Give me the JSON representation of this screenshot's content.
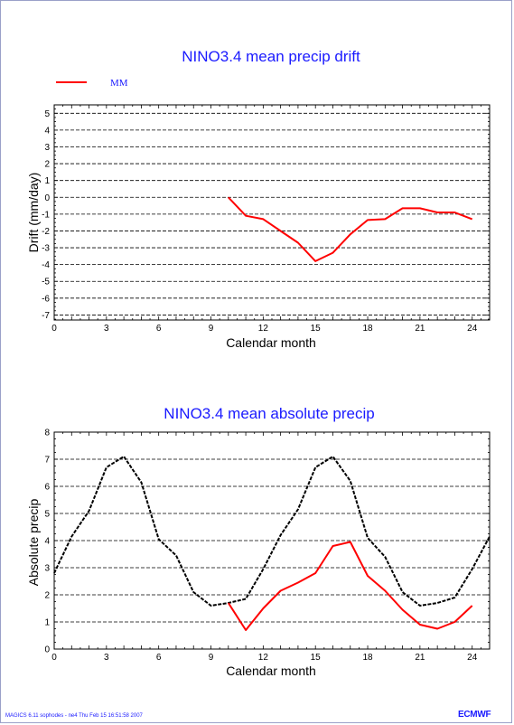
{
  "footer": "MAGICS 6.11 sophodes - ne4 Thu Feb 15 16:51:58 2007",
  "logo": "ECMWF",
  "chart_data": [
    {
      "type": "line",
      "title": "NINO3.4 mean precip drift",
      "xlabel": "Calendar month",
      "ylabel": "Drift (mm/day)",
      "xlim": [
        0,
        25
      ],
      "ylim": [
        -7.3,
        5.5
      ],
      "xticks": [
        0,
        3,
        6,
        9,
        12,
        15,
        18,
        21,
        24
      ],
      "yticks": [
        -7,
        -6,
        -5,
        -4,
        -3,
        -2,
        -1,
        0,
        1,
        2,
        3,
        4,
        5
      ],
      "grid": "horizontal dashed",
      "legend": {
        "position": "top-left",
        "entries": [
          {
            "label": "MM",
            "color": "#ff0000"
          }
        ]
      },
      "series": [
        {
          "name": "MM",
          "color": "#ff0000",
          "x": [
            10,
            11,
            12,
            13,
            14,
            15,
            16,
            17,
            18,
            19,
            20,
            21,
            22,
            23,
            24
          ],
          "y": [
            0.0,
            -1.1,
            -1.3,
            -2.0,
            -2.7,
            -3.8,
            -3.3,
            -2.2,
            -1.35,
            -1.3,
            -0.65,
            -0.65,
            -0.9,
            -0.9,
            -1.3
          ]
        }
      ]
    },
    {
      "type": "line",
      "title": "NINO3.4 mean absolute precip",
      "xlabel": "Calendar month",
      "ylabel": "Absolute precip",
      "xlim": [
        0,
        25
      ],
      "ylim": [
        0,
        8
      ],
      "xticks": [
        0,
        3,
        6,
        9,
        12,
        15,
        18,
        21,
        24
      ],
      "yticks": [
        0,
        1,
        2,
        3,
        4,
        5,
        6,
        7,
        8
      ],
      "grid": "horizontal dashed",
      "series": [
        {
          "color": "#000000",
          "dash": true,
          "x": [
            0,
            1,
            2,
            3,
            4,
            5,
            6,
            7,
            8,
            9,
            10,
            11,
            12,
            13,
            14,
            15,
            16,
            17,
            18,
            19,
            20,
            21,
            22,
            23,
            24,
            25
          ],
          "y": [
            2.8,
            4.15,
            5.1,
            6.7,
            7.1,
            6.15,
            4.05,
            3.45,
            2.1,
            1.6,
            1.7,
            1.85,
            2.95,
            4.2,
            5.15,
            6.7,
            7.1,
            6.2,
            4.1,
            3.4,
            2.1,
            1.6,
            1.7,
            1.9,
            2.95,
            4.15
          ]
        },
        {
          "color": "#ff0000",
          "dash": false,
          "x": [
            10,
            11,
            12,
            13,
            14,
            15,
            16,
            17,
            18,
            19,
            20,
            21,
            22,
            23,
            24
          ],
          "y": [
            1.7,
            0.7,
            1.5,
            2.15,
            2.45,
            2.8,
            3.8,
            3.95,
            2.7,
            2.15,
            1.45,
            0.9,
            0.75,
            1.0,
            1.6
          ]
        }
      ]
    }
  ]
}
